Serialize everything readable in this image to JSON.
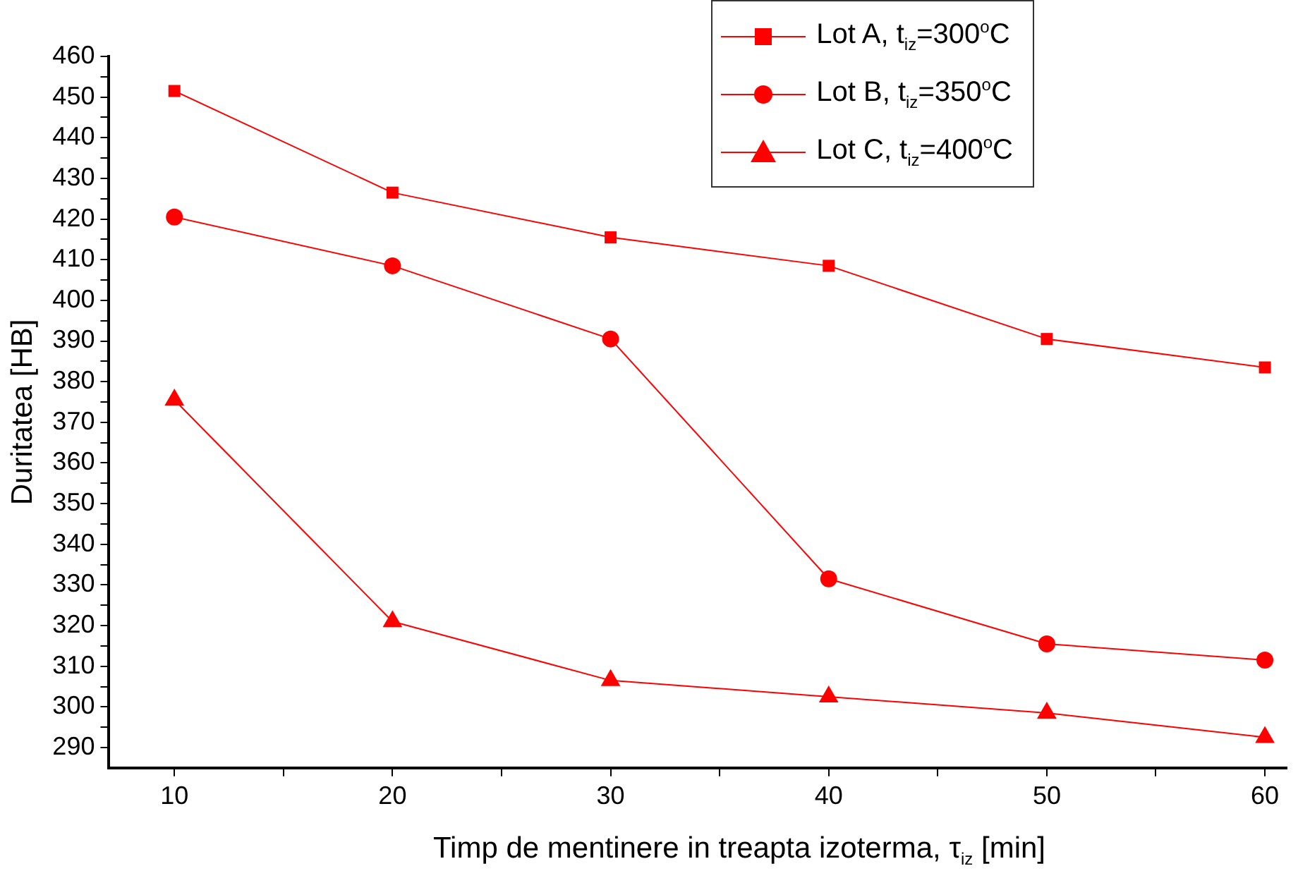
{
  "chart_data": {
    "type": "line",
    "xlabel": "Timp de mentinere in treapta izoterma, τ$_{iz}$ [min]",
    "ylabel": "Duritatea [HB]",
    "x": [
      10,
      20,
      30,
      40,
      50,
      60
    ],
    "xlim": [
      7,
      61
    ],
    "xticks": [
      10,
      {
        "value": 15,
        "label": null
      },
      20,
      {
        "value": 25,
        "label": null
      },
      30,
      {
        "value": 35,
        "label": null
      },
      40,
      {
        "value": 45,
        "label": null
      },
      50,
      {
        "value": 55,
        "label": null
      },
      60
    ],
    "ylim": [
      285,
      460
    ],
    "yticks": [
      290,
      {
        "value": 295,
        "label": null
      },
      300,
      {
        "value": 305,
        "label": null
      },
      310,
      {
        "value": 315,
        "label": null
      },
      320,
      {
        "value": 325,
        "label": null
      },
      330,
      {
        "value": 335,
        "label": null
      },
      340,
      {
        "value": 345,
        "label": null
      },
      350,
      {
        "value": 355,
        "label": null
      },
      360,
      {
        "value": 365,
        "label": null
      },
      370,
      {
        "value": 375,
        "label": null
      },
      380,
      {
        "value": 385,
        "label": null
      },
      390,
      {
        "value": 395,
        "label": null
      },
      400,
      {
        "value": 405,
        "label": null
      },
      410,
      {
        "value": 415,
        "label": null
      },
      420,
      {
        "value": 425,
        "label": null
      },
      430,
      {
        "value": 435,
        "label": null
      },
      440,
      {
        "value": 445,
        "label": null
      },
      450,
      {
        "value": 455,
        "label": null
      },
      460
    ],
    "grid": false,
    "legend": "top right",
    "line_style": "solid",
    "series": [
      {
        "name": "Lot A, t$_{iz}$=300$^{o}$C",
        "color": "#ff0000",
        "marker": "square",
        "values": [
          451.5,
          426.5,
          415.5,
          408.5,
          390.5,
          383.5
        ]
      },
      {
        "name": "Lot B, t$_{iz}$=350$^{o}$C",
        "color": "#ff0000",
        "marker": "circle",
        "values": [
          420.5,
          408.5,
          390.5,
          331.5,
          315.5,
          311.5
        ]
      },
      {
        "name": "Lot C, t$_{iz}$=400$^{o}$C",
        "color": "#ff0000",
        "marker": "triangle",
        "values": [
          375.5,
          321,
          306.5,
          302.5,
          298.5,
          292.5
        ]
      }
    ]
  }
}
